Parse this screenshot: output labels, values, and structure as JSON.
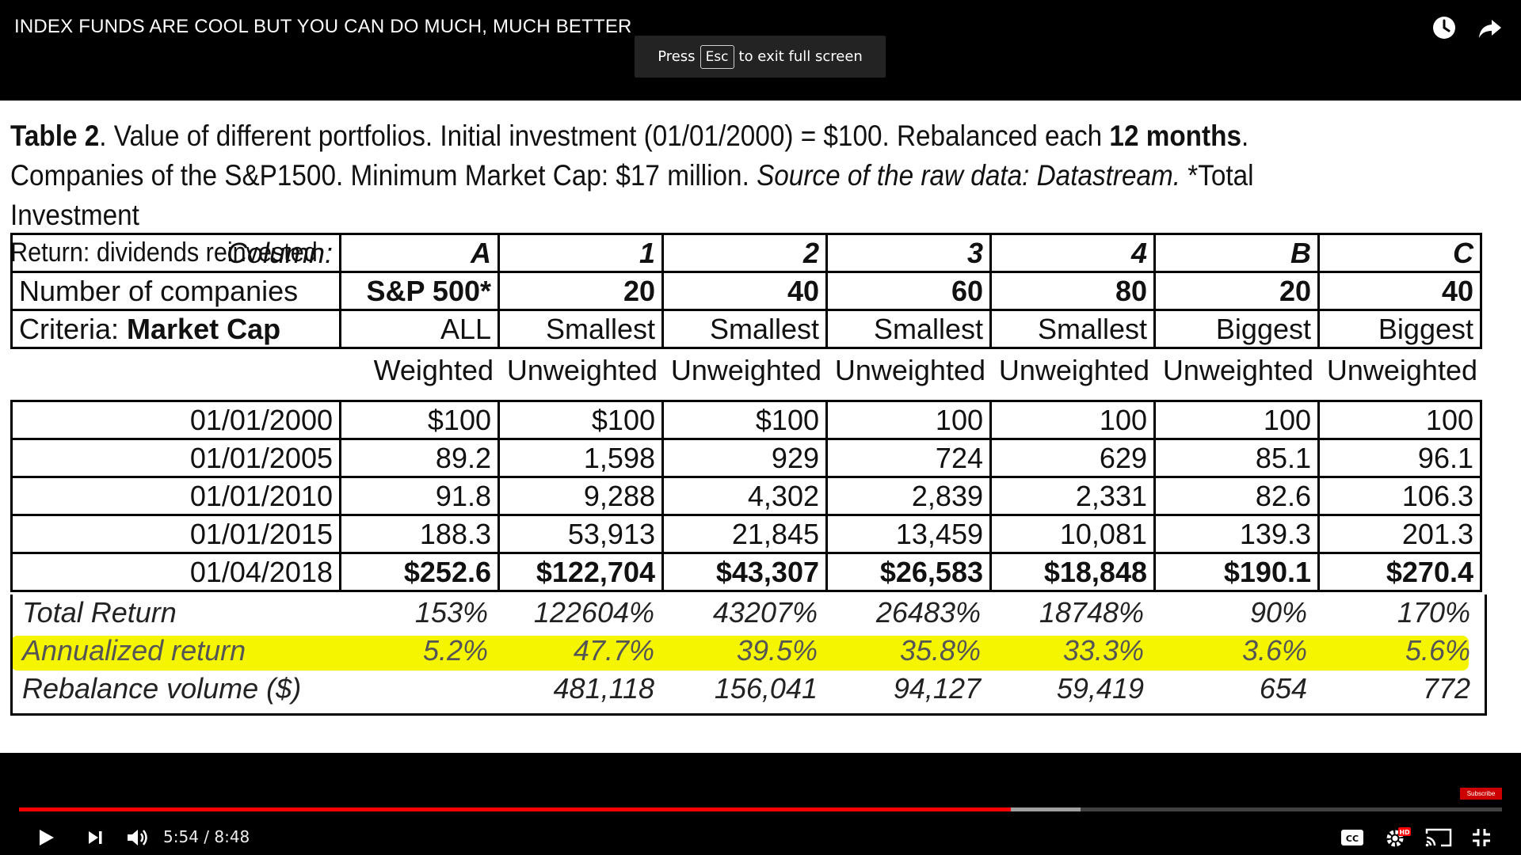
{
  "header": {
    "title": "INDEX FUNDS ARE COOL BUT YOU CAN DO MUCH, MUCH BETTER"
  },
  "toast": {
    "press": "Press",
    "key": "Esc",
    "rest": "to exit full screen"
  },
  "slide": {
    "caption_line1_a": "Table 2",
    "caption_line1_b": ". Value of different portfolios. Initial investment (01/01/2000) = $100. Rebalanced each ",
    "caption_line1_c": "12 months",
    "caption_line1_d": ".",
    "caption_line2_a": "Companies of the S&P1500. Minimum Market Cap: $17 million. ",
    "caption_line2_b": "Source of the raw data: Datastream.",
    "caption_line2_c": " *Total Investment",
    "caption_line3": "Return: dividends reinvested",
    "header_rows": {
      "column": [
        "Column:",
        "A",
        "1",
        "2",
        "3",
        "4",
        "B",
        "C"
      ],
      "companies": [
        "Number of companies",
        "S&P 500*",
        "20",
        "40",
        "60",
        "80",
        "20",
        "40"
      ],
      "criteria_label": "Criteria: ",
      "criteria_bold": "Market Cap",
      "criteria": [
        "ALL",
        "Smallest",
        "Smallest",
        "Smallest",
        "Smallest",
        "Biggest",
        "Biggest"
      ]
    },
    "weights": [
      "Weighted",
      "Unweighted",
      "Unweighted",
      "Unweighted",
      "Unweighted",
      "Unweighted",
      "Unweighted"
    ],
    "rows": [
      [
        "01/01/2000",
        "$100",
        "$100",
        "$100",
        "100",
        "100",
        "100",
        "100"
      ],
      [
        "01/01/2005",
        "89.2",
        "1,598",
        "929",
        "724",
        "629",
        "85.1",
        "96.1"
      ],
      [
        "01/01/2010",
        "91.8",
        "9,288",
        "4,302",
        "2,839",
        "2,331",
        "82.6",
        "106.3"
      ],
      [
        "01/01/2015",
        "188.3",
        "53,913",
        "21,845",
        "13,459",
        "10,081",
        "139.3",
        "201.3"
      ],
      [
        "01/04/2018",
        "$252.6",
        "$122,704",
        "$43,307",
        "$26,583",
        "$18,848",
        "$190.1",
        "$270.4"
      ]
    ],
    "total_return": [
      "Total Return",
      "153%",
      "122604%",
      "43207%",
      "26483%",
      "18748%",
      "90%",
      "170%"
    ],
    "annualized": [
      "Annualized return",
      "5.2%",
      "47.7%",
      "39.5%",
      "35.8%",
      "33.3%",
      "3.6%",
      "5.6%"
    ],
    "rebalance": [
      "Rebalance volume ($)",
      "",
      "481,118",
      "156,041",
      "94,127",
      "59,419",
      "654",
      "772"
    ],
    "highlight_color": "#f5f500"
  },
  "player": {
    "time": "5:54 / 8:48",
    "progress_played": 0.669,
    "progress_buffered": 0.716,
    "subscribe": "Subscribe",
    "accent": "#ff0000",
    "hd_badge": "HD"
  }
}
